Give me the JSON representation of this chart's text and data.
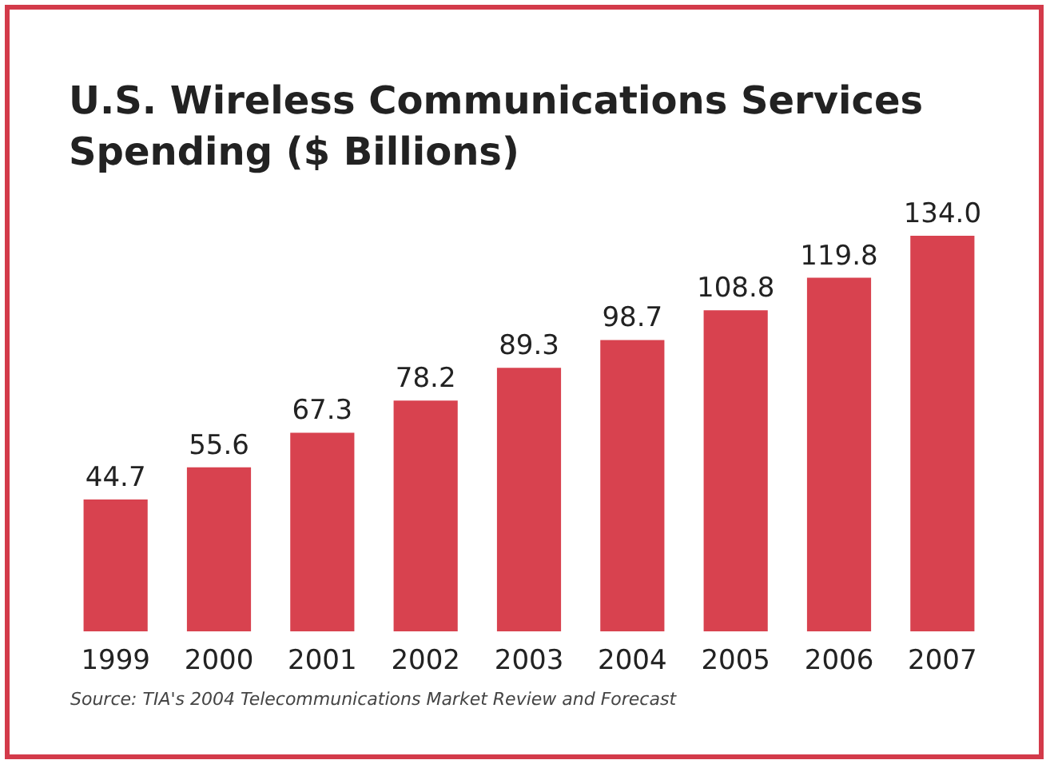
{
  "chart_data": {
    "type": "bar",
    "title": "U.S. Wireless Communications Services Spending ($ Billions)",
    "categories": [
      "1999",
      "2000",
      "2001",
      "2002",
      "2003",
      "2004",
      "2005",
      "2006",
      "2007"
    ],
    "values": [
      44.7,
      55.6,
      67.3,
      78.2,
      89.3,
      98.7,
      108.8,
      119.8,
      134.0
    ],
    "value_labels": [
      "44.7",
      "55.6",
      "67.3",
      "78.2",
      "89.3",
      "98.7",
      "108.8",
      "119.8",
      "134.0"
    ],
    "color": "#d8424f",
    "tick_labels": "x",
    "annotations": [
      "Source: TIA's 2004 Telecommunications Market Review and Forecast"
    ]
  }
}
